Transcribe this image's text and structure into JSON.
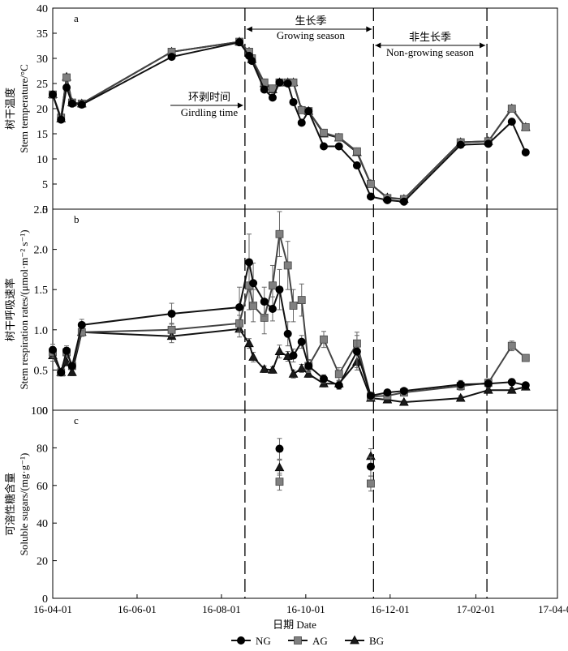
{
  "colors": {
    "NG": "#000000",
    "AG": "#555555",
    "BG": "#1a1a1a",
    "axis": "#000000"
  },
  "chart_data": {
    "type": "line",
    "shared_x": {
      "label": "日期 Date",
      "ticks": [
        "16-04-01",
        "16-06-01",
        "16-08-01",
        "16-10-01",
        "16-12-01",
        "17-02-01",
        "17-04-01"
      ],
      "tick_days": [
        0,
        61,
        122,
        183,
        244,
        306,
        365
      ],
      "range_days": [
        0,
        365
      ]
    },
    "reference_lines_days": [
      139,
      232,
      314
    ],
    "legend": [
      "NG",
      "AG",
      "BG"
    ],
    "annotations": [
      {
        "id": "girdling",
        "cn": "环剥时间",
        "en": "Girdling time"
      },
      {
        "id": "growing",
        "cn": "生长季",
        "en": "Growing season"
      },
      {
        "id": "nongrowing",
        "cn": "非生长季",
        "en": "Non-growing season"
      }
    ],
    "panels": [
      {
        "id": "a",
        "label": "a",
        "ylabel_cn": "树干温度",
        "ylabel_en": "Stem temperature/°C",
        "ylim": [
          0,
          40
        ],
        "yticks": [
          "0",
          "5",
          "10",
          "15",
          "20",
          "25",
          "30",
          "35",
          "40"
        ],
        "yticks_num": [
          0,
          5,
          10,
          15,
          20,
          25,
          30,
          35,
          40
        ],
        "series": [
          {
            "name": "NG",
            "marker": "circle",
            "x": [
              0,
              6,
              10,
              14,
              21,
              86,
              135,
              142,
              144,
              153,
              159,
              164,
              170,
              174,
              180,
              185,
              196,
              207,
              220,
              230,
              242,
              254,
              295,
              315,
              332,
              342
            ],
            "y": [
              22.8,
              17.8,
              24.2,
              21.0,
              20.8,
              30.3,
              33.2,
              30.5,
              29.5,
              23.8,
              22.2,
              25.2,
              25.0,
              21.3,
              17.2,
              19.5,
              12.5,
              12.5,
              8.7,
              2.5,
              1.8,
              1.5,
              12.8,
              13.0,
              17.4,
              11.3
            ]
          },
          {
            "name": "AG",
            "marker": "square",
            "x": [
              0,
              6,
              10,
              14,
              21,
              86,
              135,
              142,
              144,
              153,
              159,
              164,
              170,
              174,
              180,
              185,
              196,
              207,
              220,
              230,
              242,
              254,
              295,
              315,
              332,
              342
            ],
            "y": [
              22.8,
              18.2,
              26.2,
              21.2,
              21.0,
              31.3,
              33.3,
              31.3,
              30.0,
              25.2,
              24.0,
              25.2,
              25.2,
              25.2,
              19.7,
              19.5,
              15.2,
              14.3,
              11.5,
              5.0,
              2.2,
              2.0,
              13.3,
              13.5,
              20.0,
              16.3
            ]
          },
          {
            "name": "BG",
            "marker": "triangle",
            "x": [
              0,
              6,
              10,
              14,
              21,
              86,
              135,
              142,
              144,
              153,
              159,
              164,
              170,
              174,
              180,
              185,
              196,
              207,
              220,
              230,
              242,
              254,
              295,
              315,
              332,
              342
            ],
            "y": [
              22.8,
              18.0,
              26.3,
              21.2,
              21.0,
              31.3,
              33.3,
              31.3,
              29.8,
              25.0,
              23.8,
              25.2,
              25.2,
              25.2,
              19.7,
              19.5,
              15.0,
              14.2,
              11.3,
              5.0,
              2.3,
              2.0,
              13.3,
              13.5,
              20.0,
              16.3
            ]
          }
        ]
      },
      {
        "id": "b",
        "label": "b",
        "ylabel_cn": "树干呼吸速率",
        "ylabel_en": "Stem respiration rates/(μmol·m⁻² s⁻¹)",
        "ylim": [
          0,
          2.5
        ],
        "yticks": [
          "0",
          "0.5",
          "1.0",
          "1.5",
          "2.0",
          "2.5"
        ],
        "yticks_num": [
          0,
          0.5,
          1.0,
          1.5,
          2.0,
          2.5
        ],
        "series": [
          {
            "name": "NG",
            "marker": "circle",
            "x": [
              0,
              6,
              10,
              14,
              21,
              86,
              135,
              142,
              145,
              153,
              159,
              164,
              170,
              174,
              180,
              185,
              196,
              207,
              220,
              230,
              242,
              254,
              295,
              315,
              332,
              342
            ],
            "y": [
              0.75,
              0.47,
              0.74,
              0.55,
              1.06,
              1.2,
              1.28,
              1.84,
              1.58,
              1.35,
              1.26,
              1.5,
              0.95,
              0.68,
              0.85,
              0.55,
              0.39,
              0.31,
              0.73,
              0.18,
              0.22,
              0.24,
              0.32,
              0.33,
              0.35,
              0.31
            ],
            "err": [
              0.07,
              0.03,
              0.06,
              0.04,
              0.07,
              0.13,
              0.25,
              0.35,
              0.25,
              0.18,
              0.15,
              0.25,
              0.15,
              0.08,
              0.08,
              0.07,
              0.05,
              0.05,
              0.2,
              0.03,
              0.03,
              0.03,
              0.05,
              0.05,
              0.04,
              0.03
            ]
          },
          {
            "name": "AG",
            "marker": "square",
            "x": [
              0,
              6,
              10,
              14,
              21,
              86,
              135,
              142,
              145,
              153,
              159,
              164,
              170,
              174,
              180,
              185,
              196,
              207,
              220,
              230,
              242,
              254,
              295,
              315,
              332,
              342
            ],
            "y": [
              0.72,
              0.47,
              0.72,
              0.55,
              0.97,
              1.0,
              1.08,
              1.55,
              1.3,
              1.15,
              1.55,
              2.19,
              1.8,
              1.3,
              1.37,
              0.55,
              0.88,
              0.45,
              0.83,
              0.17,
              0.18,
              0.22,
              0.3,
              0.34,
              0.8,
              0.65
            ],
            "err": [
              0.07,
              0.03,
              0.06,
              0.04,
              0.05,
              0.08,
              0.1,
              0.3,
              0.2,
              0.2,
              0.25,
              0.28,
              0.3,
              0.2,
              0.2,
              0.08,
              0.1,
              0.08,
              0.14,
              0.03,
              0.03,
              0.03,
              0.05,
              0.05,
              0.06,
              0.03
            ]
          },
          {
            "name": "BG",
            "marker": "triangle",
            "x": [
              0,
              6,
              10,
              14,
              21,
              86,
              135,
              142,
              145,
              153,
              159,
              164,
              170,
              174,
              180,
              185,
              196,
              207,
              220,
              230,
              242,
              254,
              295,
              315,
              332,
              342
            ],
            "y": [
              0.68,
              0.47,
              0.6,
              0.47,
              0.97,
              0.92,
              1.01,
              0.83,
              0.66,
              0.51,
              0.5,
              0.73,
              0.67,
              0.45,
              0.52,
              0.45,
              0.33,
              0.33,
              0.6,
              0.15,
              0.13,
              0.1,
              0.15,
              0.25,
              0.25,
              0.29
            ],
            "err": [
              0.07,
              0.03,
              0.05,
              0.04,
              0.05,
              0.08,
              0.1,
              0.06,
              0.06,
              0.04,
              0.04,
              0.08,
              0.06,
              0.05,
              0.05,
              0.04,
              0.04,
              0.04,
              0.1,
              0.02,
              0.02,
              0.02,
              0.03,
              0.03,
              0.03,
              0.03
            ]
          }
        ]
      },
      {
        "id": "c",
        "label": "c",
        "ylabel_cn": "可溶性糖含量",
        "ylabel_en": "Soluble sugars/(mg·g⁻¹)",
        "ylim": [
          0,
          100
        ],
        "yticks": [
          "0",
          "20",
          "40",
          "60",
          "80",
          "100"
        ],
        "yticks_num": [
          0,
          20,
          40,
          60,
          80,
          100
        ],
        "series": [
          {
            "name": "NG",
            "marker": "circle",
            "x": [
              164,
              230
            ],
            "y": [
              79.5,
              70.0
            ],
            "err": [
              5.5,
              5.0
            ]
          },
          {
            "name": "AG",
            "marker": "square",
            "x": [
              164,
              230
            ],
            "y": [
              62.0,
              61.0
            ],
            "err": [
              4.5,
              4.0
            ]
          },
          {
            "name": "BG",
            "marker": "triangle",
            "x": [
              164,
              230
            ],
            "y": [
              69.5,
              75.5
            ],
            "err": [
              4.0,
              4.0
            ]
          }
        ]
      }
    ]
  }
}
